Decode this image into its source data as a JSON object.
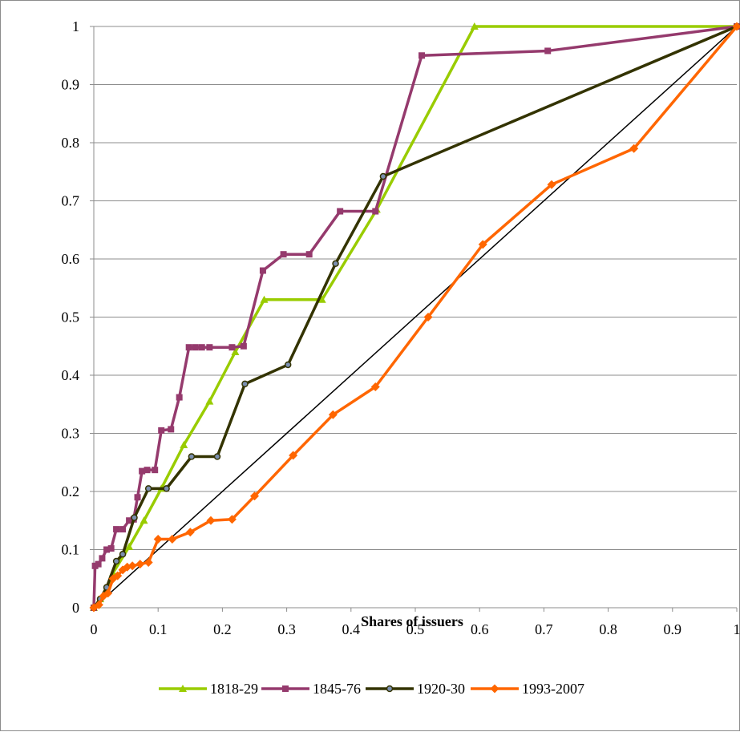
{
  "chart_data": {
    "type": "line",
    "title": "",
    "xlabel": "Shares of issuers",
    "ylabel": "",
    "xlim": [
      0,
      1
    ],
    "ylim": [
      0,
      1
    ],
    "x_ticks": [
      "0",
      "0.1",
      "0.2",
      "0.3",
      "0.4",
      "0.5",
      "0.6",
      "0.7",
      "0.8",
      "0.9",
      "1"
    ],
    "y_ticks": [
      "0",
      "0.1",
      "0.2",
      "0.3",
      "0.4",
      "0.5",
      "0.6",
      "0.7",
      "0.8",
      "0.9",
      "1"
    ],
    "grid": "horizontal",
    "legend_position": "bottom",
    "reference_line": {
      "x": [
        0,
        1
      ],
      "y": [
        0,
        1
      ],
      "color": "#000000"
    },
    "series": [
      {
        "name": "1818-29",
        "color": "#99cc00",
        "marker": "triangle",
        "x": [
          0,
          0.005,
          0.01,
          0.02,
          0.03,
          0.055,
          0.078,
          0.105,
          0.14,
          0.18,
          0.22,
          0.265,
          0.355,
          0.44,
          0.592,
          1
        ],
        "y": [
          0,
          0.005,
          0.015,
          0.03,
          0.06,
          0.105,
          0.15,
          0.205,
          0.28,
          0.355,
          0.44,
          0.53,
          0.53,
          0.685,
          1,
          1
        ]
      },
      {
        "name": "1845-76",
        "color": "#953a6d",
        "marker": "square",
        "x": [
          0,
          0.002,
          0.007,
          0.013,
          0.02,
          0.027,
          0.035,
          0.045,
          0.055,
          0.062,
          0.068,
          0.075,
          0.083,
          0.095,
          0.105,
          0.12,
          0.133,
          0.148,
          0.158,
          0.168,
          0.18,
          0.215,
          0.233,
          0.263,
          0.295,
          0.335,
          0.383,
          0.438,
          0.51,
          0.706,
          1
        ],
        "y": [
          0,
          0.072,
          0.075,
          0.085,
          0.1,
          0.102,
          0.135,
          0.135,
          0.15,
          0.152,
          0.19,
          0.235,
          0.237,
          0.237,
          0.305,
          0.307,
          0.362,
          0.448,
          0.448,
          0.448,
          0.448,
          0.448,
          0.45,
          0.58,
          0.608,
          0.608,
          0.682,
          0.682,
          0.95,
          0.958,
          1
        ]
      },
      {
        "name": "1920-30",
        "color": "#333300",
        "marker": "circle",
        "x": [
          0,
          0.01,
          0.02,
          0.035,
          0.045,
          0.063,
          0.085,
          0.113,
          0.152,
          0.192,
          0.235,
          0.302,
          0.376,
          0.45,
          1
        ],
        "y": [
          0,
          0.015,
          0.035,
          0.08,
          0.092,
          0.155,
          0.205,
          0.205,
          0.26,
          0.26,
          0.385,
          0.418,
          0.592,
          0.742,
          1
        ]
      },
      {
        "name": "1993-2007",
        "color": "#ff6600",
        "marker": "diamond",
        "x": [
          0,
          0.008,
          0.015,
          0.022,
          0.03,
          0.037,
          0.045,
          0.052,
          0.06,
          0.072,
          0.085,
          0.1,
          0.122,
          0.15,
          0.182,
          0.215,
          0.25,
          0.31,
          0.372,
          0.438,
          0.52,
          0.605,
          0.712,
          0.84,
          1
        ],
        "y": [
          0,
          0.005,
          0.02,
          0.025,
          0.05,
          0.055,
          0.065,
          0.07,
          0.072,
          0.075,
          0.078,
          0.118,
          0.118,
          0.13,
          0.15,
          0.152,
          0.192,
          0.262,
          0.332,
          0.38,
          0.5,
          0.625,
          0.728,
          0.79,
          1
        ]
      }
    ]
  }
}
